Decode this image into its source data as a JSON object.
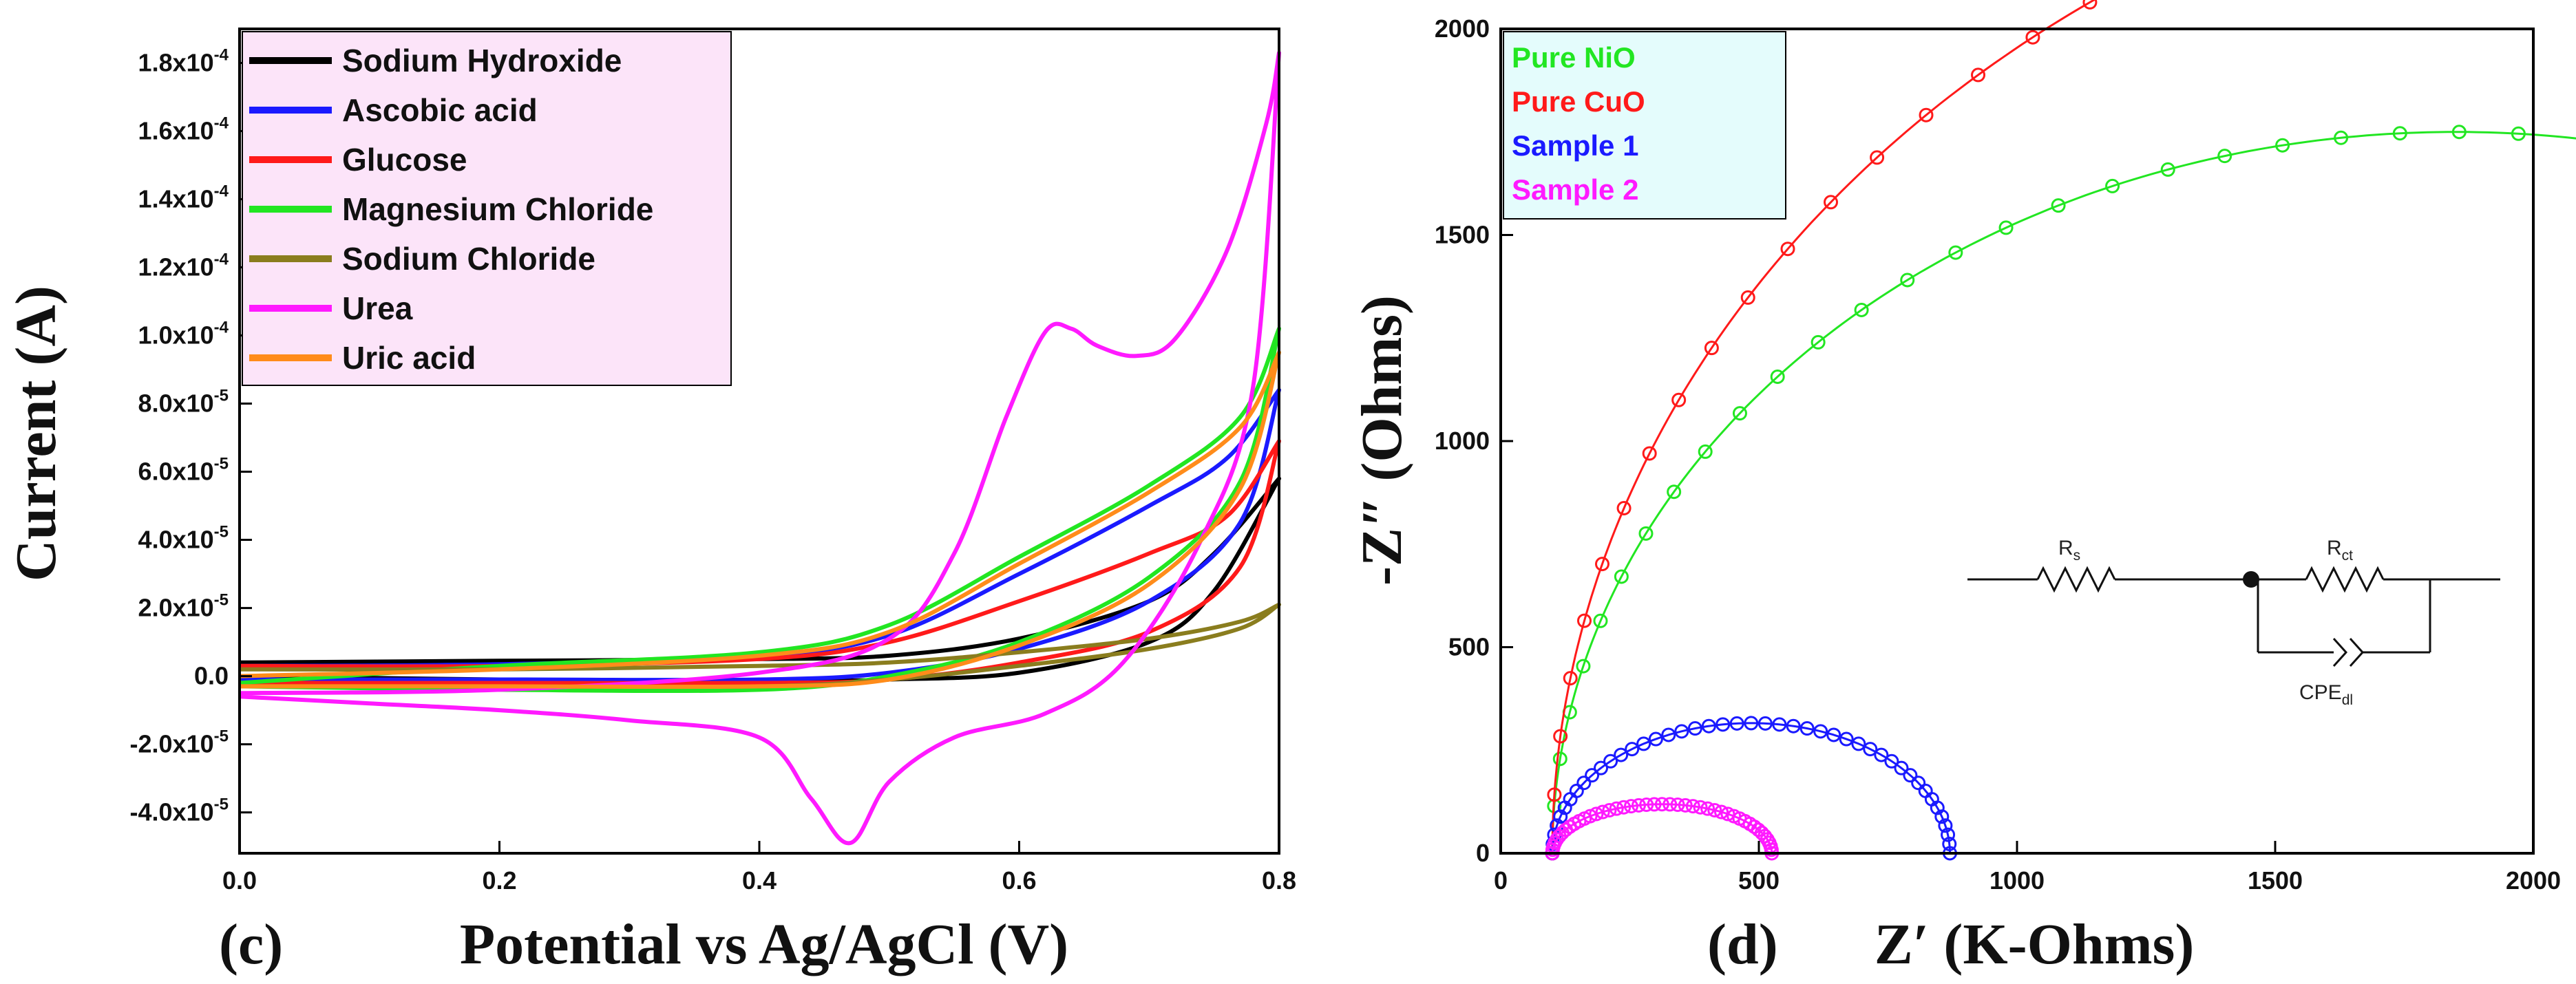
{
  "chart_data": [
    {
      "type": "line",
      "panel_label": "(c)",
      "xlabel": "Potential vs Ag/AgCl (V)",
      "ylabel": "Current (A)",
      "xlim": [
        0.0,
        0.8
      ],
      "ylim": [
        -5.2e-05,
        0.00019
      ],
      "x_ticks": [
        "0.0",
        "0.2",
        "0.4",
        "0.6",
        "0.8"
      ],
      "y_ticks": [
        {
          "value": -4e-05,
          "label": "-4.0x10",
          "exp": "-5"
        },
        {
          "value": -2e-05,
          "label": "-2.0x10",
          "exp": "-5"
        },
        {
          "value": 0.0,
          "label": "0.0",
          "exp": ""
        },
        {
          "value": 2e-05,
          "label": "2.0x10",
          "exp": "-5"
        },
        {
          "value": 4e-05,
          "label": "4.0x10",
          "exp": "-5"
        },
        {
          "value": 6e-05,
          "label": "6.0x10",
          "exp": "-5"
        },
        {
          "value": 8e-05,
          "label": "8.0x10",
          "exp": "-5"
        },
        {
          "value": 0.0001,
          "label": "1.0x10",
          "exp": "-4"
        },
        {
          "value": 0.00012,
          "label": "1.2x10",
          "exp": "-4"
        },
        {
          "value": 0.00014,
          "label": "1.4x10",
          "exp": "-4"
        },
        {
          "value": 0.00016,
          "label": "1.6x10",
          "exp": "-4"
        },
        {
          "value": 0.00018,
          "label": "1.8x10",
          "exp": "-4"
        }
      ],
      "legend_location": "top-left",
      "series": [
        {
          "name": "Sodium Hydroxide",
          "color": "#000000",
          "forward": [
            [
              0,
              4e-06
            ],
            [
              0.2,
              4.5e-06
            ],
            [
              0.4,
              5e-06
            ],
            [
              0.5,
              6e-06
            ],
            [
              0.6,
              1.1e-05
            ],
            [
              0.7,
              2.2e-05
            ],
            [
              0.75,
              3.6e-05
            ],
            [
              0.8,
              5.8e-05
            ]
          ],
          "reverse": [
            [
              0.8,
              5.8e-05
            ],
            [
              0.75,
              2.5e-05
            ],
            [
              0.7,
              1e-05
            ],
            [
              0.6,
              1e-06
            ],
            [
              0.5,
              -1e-06
            ],
            [
              0.4,
              -1.5e-06
            ],
            [
              0.2,
              -1e-06
            ],
            [
              0,
              0
            ]
          ]
        },
        {
          "name": "Ascobic acid",
          "color": "#1a1aff",
          "forward": [
            [
              0,
              3e-06
            ],
            [
              0.2,
              3.5e-06
            ],
            [
              0.4,
              6e-06
            ],
            [
              0.5,
              1.2e-05
            ],
            [
              0.6,
              3e-05
            ],
            [
              0.7,
              5e-05
            ],
            [
              0.76,
              6.4e-05
            ],
            [
              0.8,
              8.4e-05
            ]
          ],
          "reverse": [
            [
              0.8,
              8.4e-05
            ],
            [
              0.77,
              4.5e-05
            ],
            [
              0.7,
              2.2e-05
            ],
            [
              0.6,
              8e-06
            ],
            [
              0.5,
              1e-06
            ],
            [
              0.4,
              -1e-06
            ],
            [
              0.2,
              -1e-06
            ],
            [
              0,
              -1e-06
            ]
          ]
        },
        {
          "name": "Glucose",
          "color": "#ff1a1a",
          "forward": [
            [
              0,
              3e-06
            ],
            [
              0.2,
              3e-06
            ],
            [
              0.4,
              5e-06
            ],
            [
              0.5,
              1e-05
            ],
            [
              0.6,
              2.2e-05
            ],
            [
              0.7,
              3.6e-05
            ],
            [
              0.76,
              4.7e-05
            ],
            [
              0.8,
              6.9e-05
            ]
          ],
          "reverse": [
            [
              0.8,
              6.9e-05
            ],
            [
              0.77,
              3.2e-05
            ],
            [
              0.7,
              1.3e-05
            ],
            [
              0.6,
              4e-06
            ],
            [
              0.5,
              -1e-06
            ],
            [
              0.4,
              -2e-06
            ],
            [
              0.2,
              -2e-06
            ],
            [
              0,
              -2e-06
            ]
          ]
        },
        {
          "name": "Magnesium Chloride",
          "color": "#22e622",
          "forward": [
            [
              0,
              -2e-06
            ],
            [
              0.2,
              3e-06
            ],
            [
              0.4,
              7e-06
            ],
            [
              0.5,
              1.5e-05
            ],
            [
              0.6,
              3.5e-05
            ],
            [
              0.7,
              5.6e-05
            ],
            [
              0.77,
              7.6e-05
            ],
            [
              0.8,
              0.000102
            ]
          ],
          "reverse": [
            [
              0.8,
              0.000102
            ],
            [
              0.77,
              5.7e-05
            ],
            [
              0.7,
              2.9e-05
            ],
            [
              0.6,
              1e-05
            ],
            [
              0.5,
              0
            ],
            [
              0.4,
              -4e-06
            ],
            [
              0.2,
              -4e-06
            ],
            [
              0,
              -3e-06
            ]
          ]
        },
        {
          "name": "Sodium Chloride",
          "color": "#8a7d1e",
          "forward": [
            [
              0,
              2e-06
            ],
            [
              0.2,
              2e-06
            ],
            [
              0.4,
              3e-06
            ],
            [
              0.5,
              4e-06
            ],
            [
              0.6,
              7e-06
            ],
            [
              0.7,
              1.1e-05
            ],
            [
              0.77,
              1.6e-05
            ],
            [
              0.8,
              2.1e-05
            ]
          ],
          "reverse": [
            [
              0.8,
              2.1e-05
            ],
            [
              0.77,
              1.4e-05
            ],
            [
              0.7,
              8e-06
            ],
            [
              0.6,
              3e-06
            ],
            [
              0.5,
              -1e-06
            ],
            [
              0.4,
              -3e-06
            ],
            [
              0.2,
              -3e-06
            ],
            [
              0,
              -3e-06
            ]
          ]
        },
        {
          "name": "Urea",
          "color": "#ff1aff",
          "forward": [
            [
              0,
              -5e-06
            ],
            [
              0.2,
              -4e-06
            ],
            [
              0.4,
              1e-06
            ],
            [
              0.5,
              1.1e-05
            ],
            [
              0.55,
              3.6e-05
            ],
            [
              0.59,
              7.6e-05
            ],
            [
              0.62,
              0.000101
            ],
            [
              0.64,
              0.000102
            ],
            [
              0.66,
              9.7e-05
            ],
            [
              0.69,
              9.4e-05
            ],
            [
              0.72,
              9.9e-05
            ],
            [
              0.76,
              0.000125
            ],
            [
              0.79,
              0.000162
            ],
            [
              0.8,
              0.000183
            ]
          ],
          "reverse": [
            [
              0.8,
              0.000183
            ],
            [
              0.78,
              8.5e-05
            ],
            [
              0.74,
              4e-05
            ],
            [
              0.68,
              4e-06
            ],
            [
              0.62,
              -1.1e-05
            ],
            [
              0.55,
              -1.8e-05
            ],
            [
              0.5,
              -3.1e-05
            ],
            [
              0.47,
              -4.9e-05
            ],
            [
              0.44,
              -3.6e-05
            ],
            [
              0.4,
              -1.8e-05
            ],
            [
              0.3,
              -1.3e-05
            ],
            [
              0.2,
              -1e-05
            ],
            [
              0.1,
              -8e-06
            ],
            [
              0,
              -6e-06
            ]
          ]
        },
        {
          "name": "Uric acid",
          "color": "#ff8c1a",
          "forward": [
            [
              0,
              0
            ],
            [
              0.2,
              2e-06
            ],
            [
              0.4,
              6e-06
            ],
            [
              0.5,
              1.3e-05
            ],
            [
              0.6,
              3.3e-05
            ],
            [
              0.7,
              5.4e-05
            ],
            [
              0.77,
              7.3e-05
            ],
            [
              0.8,
              9.5e-05
            ]
          ],
          "reverse": [
            [
              0.8,
              9.5e-05
            ],
            [
              0.77,
              5.5e-05
            ],
            [
              0.7,
              2.7e-05
            ],
            [
              0.6,
              9e-06
            ],
            [
              0.5,
              -1e-06
            ],
            [
              0.4,
              -3e-06
            ],
            [
              0.2,
              -3e-06
            ],
            [
              0,
              -3e-06
            ]
          ]
        }
      ]
    },
    {
      "type": "scatter",
      "panel_label": "(d)",
      "xlabel": "Z′ (K-Ohms)",
      "ylabel": "-Z″ (Ohms)",
      "xlim": [
        0,
        2000
      ],
      "ylim": [
        0,
        2000
      ],
      "x_ticks": [
        "0",
        "500",
        "1000",
        "1500",
        "2000"
      ],
      "y_ticks": [
        "0",
        "500",
        "1000",
        "1500",
        "2000"
      ],
      "legend_location": "top-left",
      "series": [
        {
          "name": "Pure NiO",
          "color": "#22e622",
          "model": "arc",
          "x_start": 100,
          "x_end": 3600,
          "k": 1.0,
          "t_max": 0.71
        },
        {
          "name": "Pure CuO",
          "color": "#ff1a1a",
          "model": "arc",
          "x_start": 100,
          "x_end": 5000,
          "k": 1.03,
          "t_max": 0.61
        },
        {
          "name": "Sample 1",
          "color": "#1a1aff",
          "model": "arc",
          "x_start": 100,
          "x_end": 870,
          "k": 0.82,
          "t_max": 1.0
        },
        {
          "name": "Sample 2",
          "color": "#ff1aff",
          "model": "arc",
          "x_start": 100,
          "x_end": 525,
          "k": 0.56,
          "t_max": 1.0
        }
      ],
      "inset_circuit": {
        "resistor_1": "R",
        "resistor_1_sub": "s",
        "resistor_2": "R",
        "resistor_2_sub": "ct",
        "cpe": "CPE",
        "cpe_sub": "dl"
      }
    }
  ]
}
